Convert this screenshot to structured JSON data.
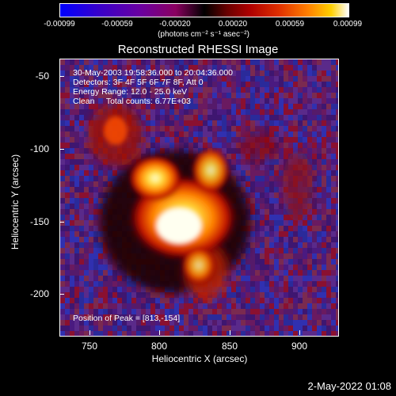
{
  "colorbar": {
    "tick_labels": [
      "-0.00099",
      "-0.00059",
      "-0.00020",
      "0.00020",
      "0.00059",
      "0.00099"
    ],
    "units": "(photons cm⁻² s⁻¹ asec⁻²)"
  },
  "title": "Reconstructed RHESSI Image",
  "info": {
    "time_range": "30-May-2003 19:58:36.000 to 20:04:36.000",
    "detectors": "Detectors: 3F 4F 5F 6F 7F 8F, Att 0",
    "energy": "Energy Range: 12.0 - 25.0 keV",
    "clean_counts": "Clean     Total counts: 6.77E+03",
    "peak": "Position of Peak = [813,-154]"
  },
  "axes": {
    "xlabel": "Heliocentric X (arcsec)",
    "ylabel": "Heliocentric Y (arcsec)",
    "x_ticks": [
      "750",
      "800",
      "850",
      "900"
    ],
    "y_ticks": [
      "-50",
      "-100",
      "-150",
      "-200"
    ]
  },
  "footer": {
    "timestamp": "2-May-2022 01:08"
  }
}
